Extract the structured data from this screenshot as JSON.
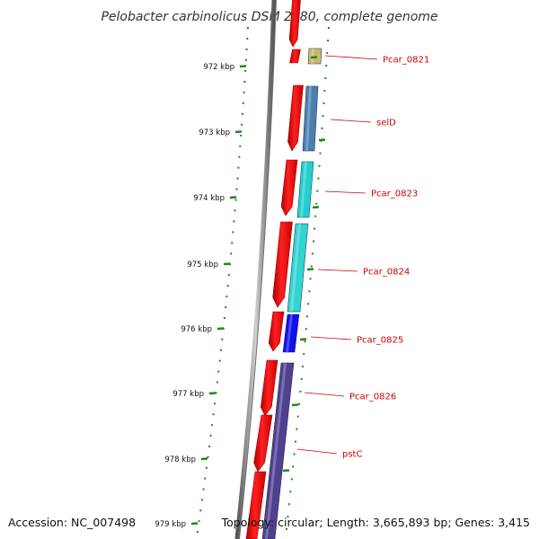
{
  "title": "Pelobacter carbinolicus DSM 2380, complete genome",
  "accession": "Accession: NC_007498",
  "topology": "Topology: circular; Length: 3,665,893 bp; Genes: 3,415",
  "colors": {
    "forward_strand": "#ff1010",
    "backbone": "#8c8c8c",
    "tick": "#1a8a1a",
    "label": "#cc0000"
  },
  "kbp_ticks": [
    "972 kbp",
    "973 kbp",
    "974 kbp",
    "975 kbp",
    "976 kbp",
    "977 kbp",
    "978 kbp",
    "979 kbp"
  ],
  "genes": [
    {
      "name": "Pcar_0821",
      "color": "#c8b870"
    },
    {
      "name": "selD",
      "color": "#4a7fb0"
    },
    {
      "name": "Pcar_0823",
      "color": "#20d0d0"
    },
    {
      "name": "Pcar_0824",
      "color": "#30d4d0"
    },
    {
      "name": "Pcar_0825",
      "color": "#1010ee"
    },
    {
      "name": "Pcar_0826",
      "color": "#504090"
    },
    {
      "name": "pstC",
      "color": "#504090"
    }
  ]
}
